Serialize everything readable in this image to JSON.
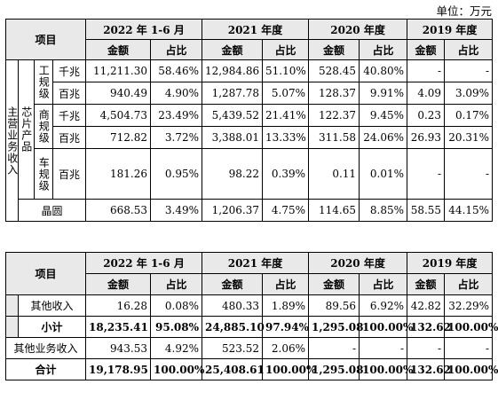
{
  "unit_label": "单位：万元",
  "period_headers": [
    "2022 年 1-6 月",
    "2021 年度",
    "2020 年度",
    "2019 年度"
  ],
  "col_headers": {
    "item": "项目",
    "amount": "金额",
    "ratio": "占比"
  },
  "table1": {
    "label_main": "主营业务收入",
    "label_chip": "芯片产品",
    "label_gongye": "工规级",
    "label_shangye": "商规级",
    "label_cheye": "车规级",
    "rows": [
      {
        "speed": "千兆",
        "v": [
          "11,211.30",
          "58.46%",
          "12,984.86",
          "51.10%",
          "528.45",
          "40.80%",
          "-",
          "-"
        ]
      },
      {
        "speed": "百兆",
        "v": [
          "940.49",
          "4.90%",
          "1,287.78",
          "5.07%",
          "128.37",
          "9.91%",
          "4.09",
          "3.09%"
        ]
      },
      {
        "speed": "千兆",
        "v": [
          "4,504.73",
          "23.49%",
          "5,439.52",
          "21.41%",
          "122.37",
          "9.45%",
          "0.23",
          "0.17%"
        ]
      },
      {
        "speed": "百兆",
        "v": [
          "712.82",
          "3.72%",
          "3,388.01",
          "13.33%",
          "311.58",
          "24.06%",
          "26.93",
          "20.31%"
        ]
      },
      {
        "speed": "百兆",
        "v": [
          "181.26",
          "0.95%",
          "98.22",
          "0.39%",
          "0.11",
          "0.01%",
          "-",
          "-"
        ]
      }
    ],
    "wafer": {
      "label": "晶圆",
      "v": [
        "668.53",
        "3.49%",
        "1,206.37",
        "4.75%",
        "114.65",
        "8.85%",
        "58.55",
        "44.15%"
      ]
    }
  },
  "table2": {
    "rows": [
      {
        "label": "其他收入",
        "v": [
          "16.28",
          "0.08%",
          "480.33",
          "1.89%",
          "89.56",
          "6.92%",
          "42.82",
          "32.29%"
        ]
      },
      {
        "label": "小计",
        "v": [
          "18,235.41",
          "95.08%",
          "24,885.10",
          "97.94%",
          "1,295.08",
          "100.00%",
          "132.62",
          "100.00%"
        ]
      },
      {
        "label": "其他业务收入",
        "v": [
          "943.53",
          "4.92%",
          "523.52",
          "2.06%",
          "-",
          "-",
          "-",
          "-"
        ]
      },
      {
        "label": "合计",
        "v": [
          "19,178.95",
          "100.00%",
          "25,408.61",
          "100.00%",
          "1,295.08",
          "100.00%",
          "132.62",
          "100.00%"
        ]
      }
    ]
  }
}
